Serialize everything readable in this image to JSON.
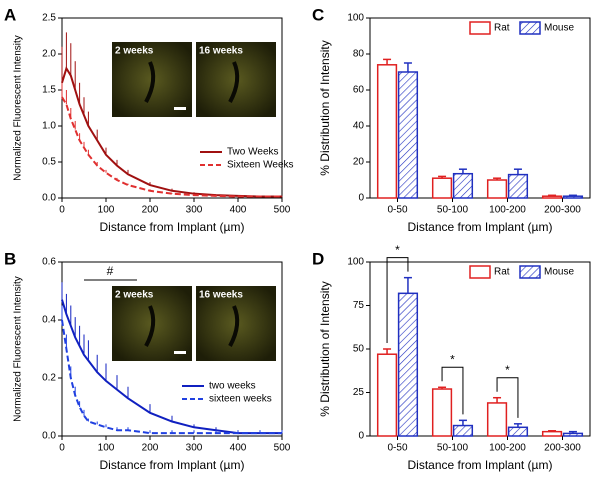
{
  "chart_data": [
    {
      "type": "line",
      "panel": "A",
      "xlabel": "Distance from Implant (µm)",
      "ylabel": "Normalized Fluorescent Intensity",
      "annotations": [
        "2 weeks",
        "16 weeks"
      ],
      "legend": "lower right",
      "x": [
        0,
        10,
        20,
        30,
        40,
        50,
        60,
        80,
        100,
        125,
        150,
        200,
        250,
        300,
        350,
        400,
        450,
        500
      ],
      "series": [
        {
          "name": "Two Weeks",
          "color": "#a01010",
          "dash": false,
          "values": [
            1.6,
            1.8,
            1.7,
            1.5,
            1.3,
            1.15,
            1.0,
            0.8,
            0.6,
            0.45,
            0.33,
            0.18,
            0.1,
            0.06,
            0.04,
            0.03,
            0.02,
            0.02
          ],
          "errors": [
            0.5,
            0.5,
            0.45,
            0.4,
            0.3,
            0.25,
            0.2,
            0.15,
            0.1,
            0.08,
            0.06,
            0.04,
            0.03,
            0.02,
            0.01,
            0.01,
            0.01,
            0.01
          ]
        },
        {
          "name": "Sixteen Weeks",
          "color": "#e03030",
          "dash": true,
          "values": [
            1.4,
            1.3,
            1.1,
            0.95,
            0.8,
            0.7,
            0.6,
            0.45,
            0.35,
            0.25,
            0.18,
            0.1,
            0.06,
            0.04,
            0.03,
            0.02,
            0.02,
            0.02
          ],
          "errors": [
            0.2,
            0.2,
            0.15,
            0.12,
            0.1,
            0.08,
            0.07,
            0.05,
            0.04,
            0.03,
            0.02,
            0.02,
            0.01,
            0.01,
            0.01,
            0.01,
            0.01,
            0.01
          ]
        }
      ],
      "xlim": [
        0,
        500
      ],
      "xticks": [
        0,
        100,
        200,
        300,
        400,
        500
      ],
      "ylim": [
        0,
        2.5
      ],
      "yticks": [
        {
          "value": 0,
          "label": "0.0"
        },
        {
          "value": 0.5,
          "label": "0.5"
        },
        {
          "value": 1,
          "label": "1.0"
        },
        {
          "value": 1.5,
          "label": "1.5"
        },
        {
          "value": 2,
          "label": "2.0"
        },
        {
          "value": 2.5,
          "label": "2.5"
        }
      ]
    },
    {
      "type": "line",
      "panel": "B",
      "xlabel": "Distance from Implant (µm)",
      "ylabel": "Normalized Fluorescent Intensity",
      "annotations": [
        "2 weeks",
        "16 weeks",
        "#"
      ],
      "legend": "center right",
      "x": [
        0,
        10,
        20,
        30,
        40,
        50,
        60,
        80,
        100,
        125,
        150,
        200,
        250,
        300,
        350,
        400,
        450,
        500
      ],
      "series": [
        {
          "name": "two weeks",
          "color": "#1020c0",
          "dash": false,
          "values": [
            0.47,
            0.42,
            0.38,
            0.34,
            0.31,
            0.28,
            0.26,
            0.22,
            0.19,
            0.16,
            0.13,
            0.08,
            0.05,
            0.03,
            0.02,
            0.01,
            0.01,
            0.01
          ],
          "errors": [
            0.06,
            0.07,
            0.07,
            0.07,
            0.07,
            0.07,
            0.07,
            0.06,
            0.06,
            0.05,
            0.04,
            0.03,
            0.02,
            0.01,
            0.01,
            0.01,
            0.01,
            0.01
          ]
        },
        {
          "name": "sixteen weeks",
          "color": "#2040e0",
          "dash": true,
          "values": [
            0.4,
            0.3,
            0.2,
            0.14,
            0.1,
            0.07,
            0.05,
            0.04,
            0.03,
            0.02,
            0.02,
            0.01,
            0.01,
            0.01,
            0.01,
            0.01,
            0.01,
            0.01
          ],
          "errors": [
            0.05,
            0.05,
            0.04,
            0.03,
            0.02,
            0.02,
            0.01,
            0.01,
            0.01,
            0.01,
            0.01,
            0.01,
            0.01,
            0.01,
            0.01,
            0.01,
            0.01,
            0.01
          ]
        }
      ],
      "xlim": [
        0,
        500
      ],
      "xticks": [
        0,
        100,
        200,
        300,
        400,
        500
      ],
      "ylim": [
        0,
        0.6
      ],
      "yticks": [
        {
          "value": 0,
          "label": "0.0"
        },
        {
          "value": 0.2,
          "label": "0.2"
        },
        {
          "value": 0.4,
          "label": "0.4"
        },
        {
          "value": 0.6,
          "label": "0.6"
        }
      ]
    },
    {
      "type": "bar",
      "panel": "C",
      "xlabel": "Distance from Implant (µm)",
      "ylabel": "% Distribution of Intensity",
      "legend": "upper right",
      "categories": [
        "0-50",
        "50-100",
        "100-200",
        "200-300"
      ],
      "series": [
        {
          "name": "Rat",
          "color": "#e02020",
          "values": [
            74,
            11,
            10,
            1
          ],
          "errors": [
            3,
            1,
            1,
            0.5
          ]
        },
        {
          "name": "Mouse",
          "color": "#2030c0",
          "values": [
            70,
            13.5,
            13,
            1
          ],
          "errors": [
            5,
            2.5,
            3,
            0.5
          ]
        }
      ],
      "ylim": [
        0,
        100
      ],
      "yticks": [
        0,
        20,
        40,
        60,
        80,
        100
      ]
    },
    {
      "type": "bar",
      "panel": "D",
      "xlabel": "Distance from Implant (µm)",
      "ylabel": "% Distribution of Intensity",
      "legend": "upper right",
      "categories": [
        "0-50",
        "50-100",
        "100-200",
        "200-300"
      ],
      "annotations": [
        "*",
        "*",
        "*"
      ],
      "series": [
        {
          "name": "Rat",
          "color": "#e02020",
          "values": [
            47,
            27,
            19,
            2.5
          ],
          "errors": [
            3,
            1,
            3,
            0.5
          ]
        },
        {
          "name": "Mouse",
          "color": "#2030c0",
          "values": [
            82,
            6,
            5,
            1.5
          ],
          "errors": [
            9,
            3,
            2,
            1
          ]
        }
      ],
      "ylim": [
        0,
        100
      ],
      "yticks": [
        0,
        25,
        50,
        75,
        100
      ]
    }
  ]
}
